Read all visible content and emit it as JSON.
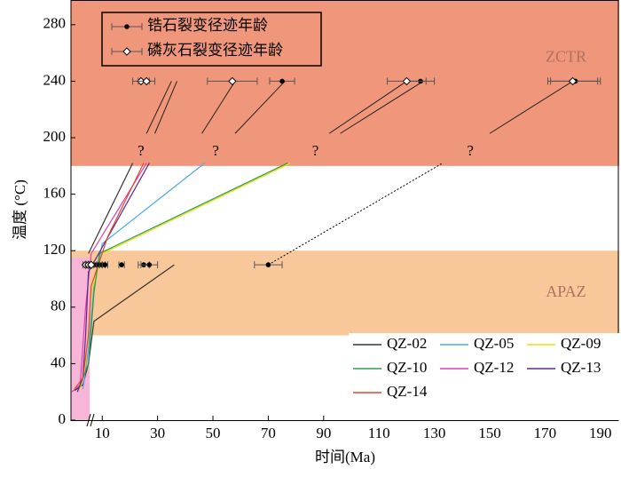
{
  "chart_data": {
    "type": "line",
    "x_label": "时间(Ma)",
    "y_label": "温度 (°C)",
    "xlim": [
      -1.3,
      196.8
    ],
    "ylim": [
      0,
      297.5
    ],
    "xticks": [
      10,
      30,
      50,
      70,
      90,
      110,
      130,
      150,
      170,
      190
    ],
    "yticks": [
      0,
      40,
      80,
      120,
      160,
      200,
      240,
      280
    ],
    "bands": [
      {
        "label": "ZCTR",
        "ymin": 180,
        "ymax": 297.5,
        "color": "#f0967a"
      },
      {
        "label": "APAZ",
        "ymin": 60,
        "ymax": 120,
        "color": "#f9c89a"
      }
    ],
    "highlight": {
      "xmin": -1.3,
      "xmax": 5.5,
      "ymin": 0,
      "ymax": 115,
      "color": "#f7b6d8"
    },
    "series": [
      {
        "name": "QZ-02",
        "color": "#333333",
        "x": [
          21,
          5,
          36,
          36,
          7,
          5,
          3,
          0
        ],
        "y": [
          182,
          118,
          null,
          110,
          70,
          40,
          25,
          21
        ]
      },
      {
        "name": "QZ-05",
        "color": "#4aa8e8",
        "x": [
          47,
          10,
          7,
          5,
          3
        ],
        "y": [
          182,
          125,
          95,
          50,
          22
        ]
      },
      {
        "name": "QZ-09",
        "color": "#e8e000",
        "x": [
          78,
          10,
          6,
          4,
          2
        ],
        "y": [
          182,
          118,
          90,
          40,
          22
        ]
      },
      {
        "name": "QZ-10",
        "color": "#2e9e4a",
        "x": [
          77,
          9,
          7,
          5,
          1
        ],
        "y": [
          182,
          118,
          90,
          40,
          20
        ]
      },
      {
        "name": "QZ-12",
        "color": "#e040b0",
        "x": [
          26,
          6,
          4,
          2,
          -1
        ],
        "y": [
          182,
          118,
          80,
          25,
          20
        ]
      },
      {
        "name": "QZ-13",
        "color": "#5a2a8a",
        "x": [
          27,
          5,
          4,
          3,
          1
        ],
        "y": [
          182,
          105,
          60,
          30,
          20
        ]
      },
      {
        "name": "QZ-14",
        "color": "#e8442a",
        "x": [
          25,
          12,
          6,
          5,
          3,
          0
        ],
        "y": [
          182,
          130,
          95,
          60,
          30,
          22
        ]
      }
    ],
    "zircon_ages": {
      "name": "锆石裂变径迹年龄",
      "x": [
        75,
        125,
        181,
        70,
        7,
        8,
        9,
        10,
        11,
        17,
        25,
        27
      ],
      "y": [
        240,
        240,
        240,
        110,
        110,
        110,
        110,
        110,
        110,
        110,
        110,
        110
      ],
      "xerr": [
        4.5,
        5,
        9,
        5,
        1,
        1,
        1,
        1,
        1,
        1,
        2,
        3
      ]
    },
    "apatite_ages": {
      "name": "磷灰石裂变径迹年龄",
      "x": [
        24,
        26,
        57,
        120,
        180,
        4,
        5,
        6
      ],
      "y": [
        240,
        240,
        240,
        240,
        240,
        110,
        110,
        110
      ],
      "xerr": [
        3,
        3,
        9,
        7,
        9,
        1,
        1,
        1
      ]
    },
    "guide_lines": [
      [
        26,
        203,
        35,
        240
      ],
      [
        29,
        203,
        37,
        240
      ],
      [
        46,
        203,
        58,
        240
      ],
      [
        58,
        203,
        76,
        240
      ],
      [
        92,
        203,
        120,
        240
      ],
      [
        96,
        203,
        126,
        240
      ],
      [
        150,
        203,
        180,
        240
      ],
      [
        70,
        110,
        133,
        182
      ]
    ],
    "annotations": [
      {
        "text": "?",
        "x": 24,
        "y": 190
      },
      {
        "text": "?",
        "x": 51,
        "y": 190
      },
      {
        "text": "?",
        "x": 87,
        "y": 190
      },
      {
        "text": "?",
        "x": 143,
        "y": 190
      }
    ]
  }
}
